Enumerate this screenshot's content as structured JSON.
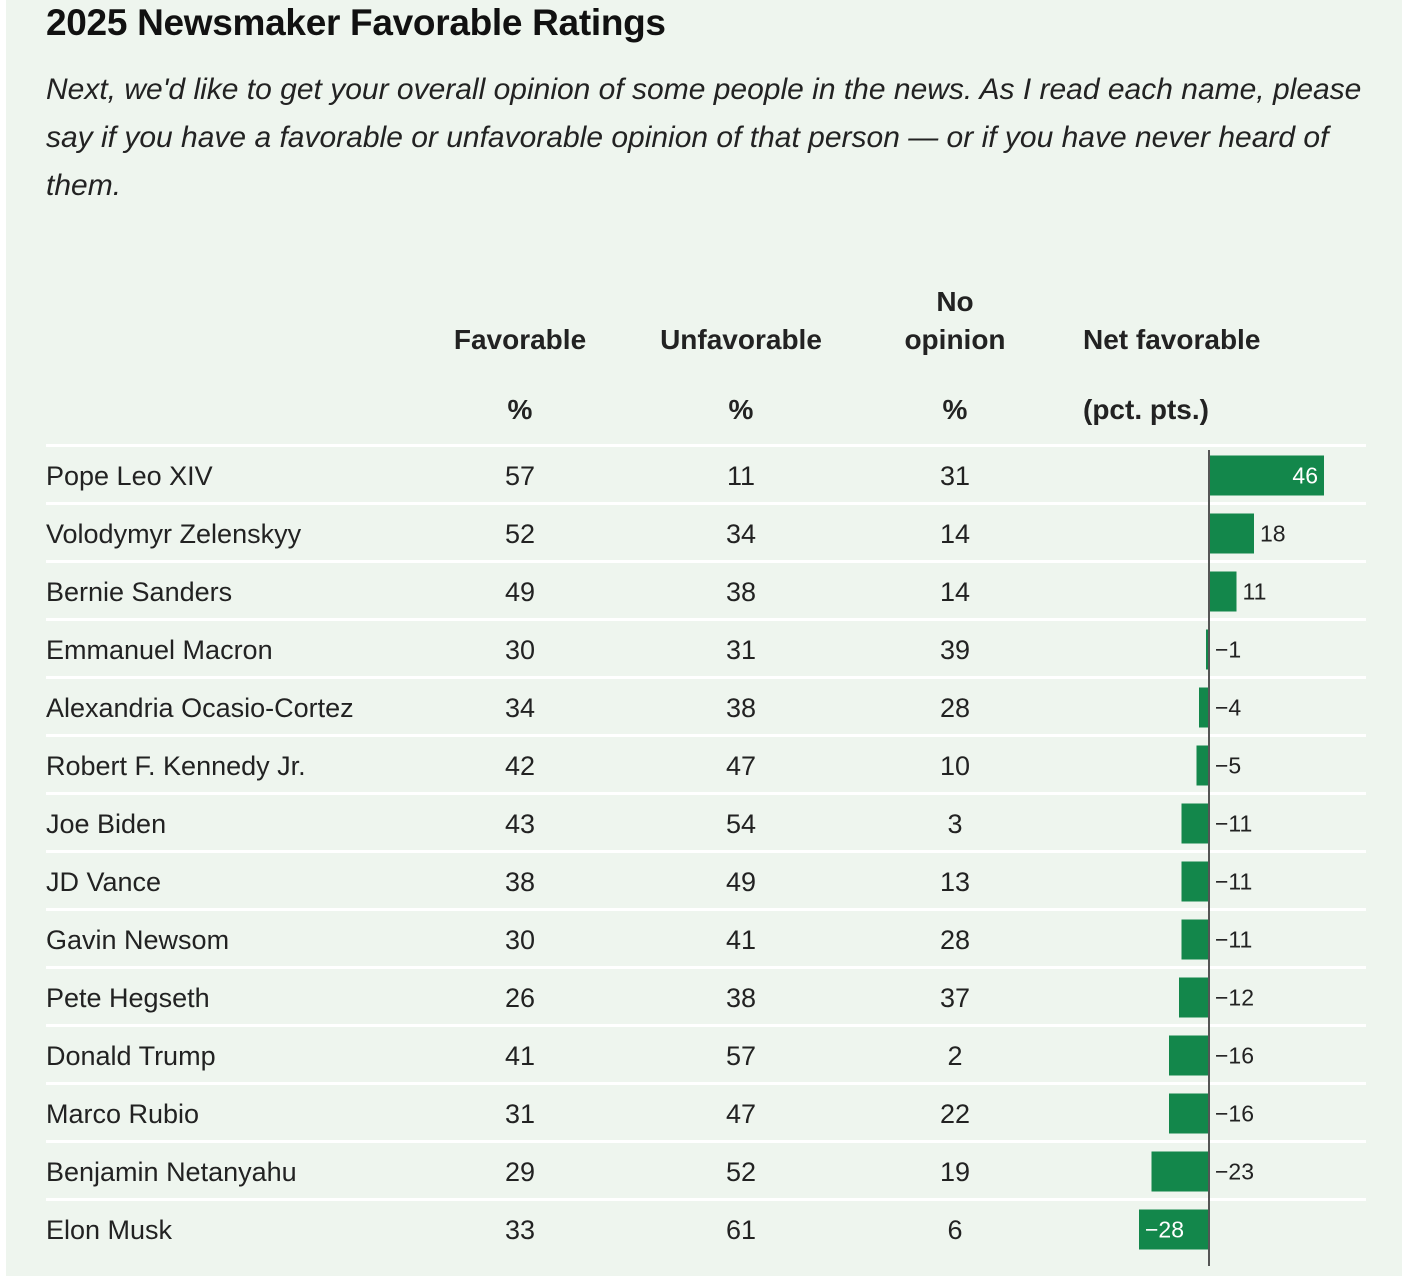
{
  "title": "2025 Newsmaker Favorable Ratings",
  "subtitle": "Next, we'd like to get your overall opinion of some people in the news. As I read each name, please say if you have a favorable or unfavorable opinion of that person — or if you have never heard of them.",
  "columns": {
    "favorable": "Favorable",
    "unfavorable": "Unfavorable",
    "no_opinion_line1": "No",
    "no_opinion_line2": "opinion",
    "net": "Net favorable",
    "pct": "%",
    "net_unit": "(pct. pts.)"
  },
  "colors": {
    "bar": "#13874b",
    "axis": "#555555",
    "background": "#eef5ee",
    "row_divider": "#ffffff"
  },
  "chart_data": {
    "type": "table",
    "title": "2025 Newsmaker Favorable Ratings",
    "headers": [
      "",
      "Favorable %",
      "Unfavorable %",
      "No opinion %",
      "Net favorable (pct. pts.)"
    ],
    "rows": [
      {
        "name": "Pope Leo XIV",
        "favorable": "57",
        "unfavorable": "11",
        "no_opinion": "31",
        "net": 46,
        "net_label": "46"
      },
      {
        "name": "Volodymyr Zelenskyy",
        "favorable": "52",
        "unfavorable": "34",
        "no_opinion": "14",
        "net": 18,
        "net_label": "18"
      },
      {
        "name": "Bernie Sanders",
        "favorable": "49",
        "unfavorable": "38",
        "no_opinion": "14",
        "net": 11,
        "net_label": "11"
      },
      {
        "name": "Emmanuel Macron",
        "favorable": "30",
        "unfavorable": "31",
        "no_opinion": "39",
        "net": -1,
        "net_label": "−1"
      },
      {
        "name": "Alexandria Ocasio-Cortez",
        "favorable": "34",
        "unfavorable": "38",
        "no_opinion": "28",
        "net": -4,
        "net_label": "−4"
      },
      {
        "name": "Robert F. Kennedy Jr.",
        "favorable": "42",
        "unfavorable": "47",
        "no_opinion": "10",
        "net": -5,
        "net_label": "−5"
      },
      {
        "name": "Joe Biden",
        "favorable": "43",
        "unfavorable": "54",
        "no_opinion": "3",
        "net": -11,
        "net_label": "−11"
      },
      {
        "name": "JD Vance",
        "favorable": "38",
        "unfavorable": "49",
        "no_opinion": "13",
        "net": -11,
        "net_label": "−11"
      },
      {
        "name": "Gavin Newsom",
        "favorable": "30",
        "unfavorable": "41",
        "no_opinion": "28",
        "net": -11,
        "net_label": "−11"
      },
      {
        "name": "Pete Hegseth",
        "favorable": "26",
        "unfavorable": "38",
        "no_opinion": "37",
        "net": -12,
        "net_label": "−12"
      },
      {
        "name": "Donald Trump",
        "favorable": "41",
        "unfavorable": "57",
        "no_opinion": "2",
        "net": -16,
        "net_label": "−16"
      },
      {
        "name": "Marco Rubio",
        "favorable": "31",
        "unfavorable": "47",
        "no_opinion": "22",
        "net": -16,
        "net_label": "−16"
      },
      {
        "name": "Benjamin Netanyahu",
        "favorable": "29",
        "unfavorable": "52",
        "no_opinion": "19",
        "net": -23,
        "net_label": "−23"
      },
      {
        "name": "Elon Musk",
        "favorable": "33",
        "unfavorable": "61",
        "no_opinion": "6",
        "net": -28,
        "net_label": "−28"
      }
    ]
  }
}
